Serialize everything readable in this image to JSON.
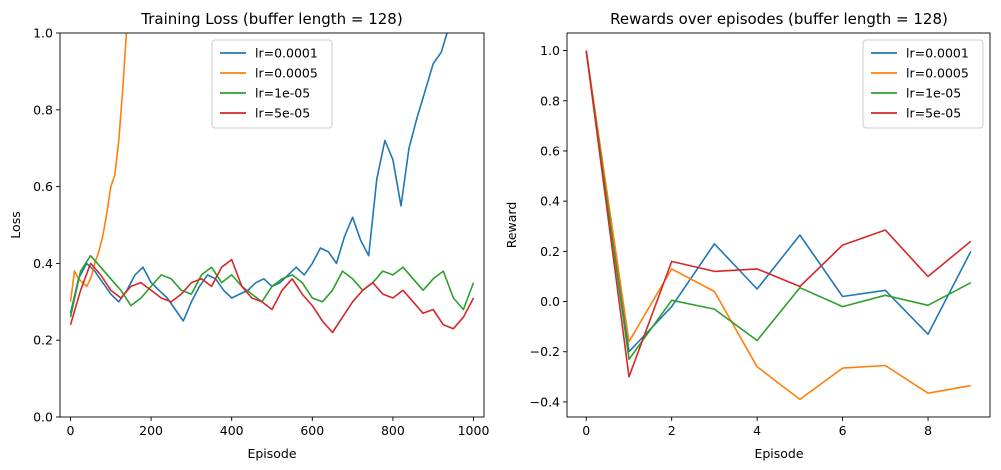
{
  "chart_data": [
    {
      "type": "line",
      "title": "Training Loss (buffer length = 128)",
      "xlabel": "Episode",
      "ylabel": "Loss",
      "xlim": [
        -26,
        1026
      ],
      "ylim": [
        0,
        1.0
      ],
      "xticks": [
        0,
        200,
        400,
        600,
        800,
        1000
      ],
      "xtick_labels": [
        "0",
        "200",
        "400",
        "600",
        "800",
        "1000"
      ],
      "yticks": [
        0.0,
        0.2,
        0.4,
        0.6,
        0.8,
        1.0
      ],
      "ytick_labels": [
        "0.0",
        "0.2",
        "0.4",
        "0.6",
        "0.8",
        "1.0"
      ],
      "grid": false,
      "legend_position": "top-center",
      "series": [
        {
          "name": "lr=0.0001",
          "color": "#1f77b4",
          "x": [
            0,
            20,
            40,
            60,
            80,
            100,
            120,
            140,
            160,
            180,
            200,
            220,
            240,
            260,
            280,
            300,
            320,
            340,
            360,
            380,
            400,
            420,
            440,
            460,
            480,
            500,
            520,
            540,
            560,
            580,
            600,
            620,
            640,
            660,
            680,
            700,
            720,
            740,
            760,
            780,
            800,
            820,
            840,
            860,
            880,
            900,
            920,
            940
          ],
          "y": [
            0.27,
            0.36,
            0.4,
            0.38,
            0.35,
            0.32,
            0.3,
            0.33,
            0.37,
            0.39,
            0.35,
            0.33,
            0.31,
            0.28,
            0.25,
            0.3,
            0.34,
            0.37,
            0.36,
            0.33,
            0.31,
            0.32,
            0.33,
            0.35,
            0.36,
            0.34,
            0.35,
            0.37,
            0.39,
            0.37,
            0.4,
            0.44,
            0.43,
            0.4,
            0.47,
            0.52,
            0.46,
            0.42,
            0.62,
            0.72,
            0.67,
            0.55,
            0.7,
            0.78,
            0.85,
            0.92,
            0.95,
            1.02
          ]
        },
        {
          "name": "lr=0.0005",
          "color": "#ff7f0e",
          "x": [
            0,
            10,
            20,
            30,
            40,
            50,
            60,
            70,
            80,
            90,
            100,
            110,
            120,
            130,
            140
          ],
          "y": [
            0.3,
            0.38,
            0.36,
            0.35,
            0.34,
            0.36,
            0.4,
            0.43,
            0.47,
            0.53,
            0.6,
            0.63,
            0.72,
            0.86,
            1.02
          ]
        },
        {
          "name": "lr=1e-05",
          "color": "#2ca02c",
          "x": [
            0,
            25,
            50,
            75,
            100,
            125,
            150,
            175,
            200,
            225,
            250,
            275,
            300,
            325,
            350,
            375,
            400,
            425,
            450,
            475,
            500,
            525,
            550,
            575,
            600,
            625,
            650,
            675,
            700,
            725,
            750,
            775,
            800,
            825,
            850,
            875,
            900,
            925,
            950,
            975,
            1000
          ],
          "y": [
            0.26,
            0.38,
            0.42,
            0.39,
            0.36,
            0.33,
            0.29,
            0.31,
            0.34,
            0.37,
            0.36,
            0.33,
            0.32,
            0.37,
            0.39,
            0.35,
            0.37,
            0.34,
            0.32,
            0.3,
            0.34,
            0.36,
            0.37,
            0.35,
            0.31,
            0.3,
            0.33,
            0.38,
            0.36,
            0.33,
            0.35,
            0.38,
            0.37,
            0.39,
            0.36,
            0.33,
            0.36,
            0.38,
            0.31,
            0.28,
            0.35
          ]
        },
        {
          "name": "lr=5e-05",
          "color": "#d62728",
          "x": [
            0,
            25,
            50,
            75,
            100,
            125,
            150,
            175,
            200,
            225,
            250,
            275,
            300,
            325,
            350,
            375,
            400,
            425,
            450,
            475,
            500,
            525,
            550,
            575,
            600,
            625,
            650,
            675,
            700,
            725,
            750,
            775,
            800,
            825,
            850,
            875,
            900,
            925,
            950,
            975,
            1000
          ],
          "y": [
            0.24,
            0.33,
            0.4,
            0.37,
            0.33,
            0.31,
            0.34,
            0.35,
            0.33,
            0.31,
            0.3,
            0.32,
            0.35,
            0.36,
            0.34,
            0.39,
            0.41,
            0.34,
            0.31,
            0.3,
            0.28,
            0.33,
            0.36,
            0.32,
            0.29,
            0.25,
            0.22,
            0.26,
            0.3,
            0.33,
            0.35,
            0.32,
            0.31,
            0.33,
            0.3,
            0.27,
            0.28,
            0.24,
            0.23,
            0.26,
            0.31
          ]
        }
      ]
    },
    {
      "type": "line",
      "title": "Rewards over episodes (buffer length = 128)",
      "xlabel": "Episode",
      "ylabel": "Reward",
      "xlim": [
        -0.45,
        9.45
      ],
      "ylim": [
        -0.46,
        1.07
      ],
      "xticks": [
        0,
        2,
        4,
        6,
        8
      ],
      "xtick_labels": [
        "0",
        "2",
        "4",
        "6",
        "8"
      ],
      "yticks": [
        -0.4,
        -0.2,
        0.0,
        0.2,
        0.4,
        0.6,
        0.8,
        1.0
      ],
      "ytick_labels": [
        "−0.4",
        "−0.2",
        "0.0",
        "0.2",
        "0.4",
        "0.6",
        "0.8",
        "1.0"
      ],
      "grid": false,
      "legend_position": "top-right",
      "series": [
        {
          "name": "lr=0.0001",
          "color": "#1f77b4",
          "x": [
            0,
            1,
            2,
            3,
            4,
            5,
            6,
            7,
            8,
            9
          ],
          "y": [
            1.0,
            -0.2,
            -0.02,
            0.23,
            0.05,
            0.265,
            0.02,
            0.045,
            -0.13,
            0.2
          ]
        },
        {
          "name": "lr=0.0005",
          "color": "#ff7f0e",
          "x": [
            0,
            1,
            2,
            3,
            4,
            5,
            6,
            7,
            8,
            9
          ],
          "y": [
            1.0,
            -0.16,
            0.13,
            0.04,
            -0.26,
            -0.39,
            -0.265,
            -0.255,
            -0.365,
            -0.335
          ]
        },
        {
          "name": "lr=1e-05",
          "color": "#2ca02c",
          "x": [
            0,
            1,
            2,
            3,
            4,
            5,
            6,
            7,
            8,
            9
          ],
          "y": [
            1.0,
            -0.23,
            0.005,
            -0.03,
            -0.155,
            0.055,
            -0.02,
            0.025,
            -0.015,
            0.075
          ]
        },
        {
          "name": "lr=5e-05",
          "color": "#d62728",
          "x": [
            0,
            1,
            2,
            3,
            4,
            5,
            6,
            7,
            8,
            9
          ],
          "y": [
            1.0,
            -0.3,
            0.16,
            0.12,
            0.13,
            0.06,
            0.225,
            0.285,
            0.1,
            0.24
          ]
        }
      ]
    }
  ]
}
